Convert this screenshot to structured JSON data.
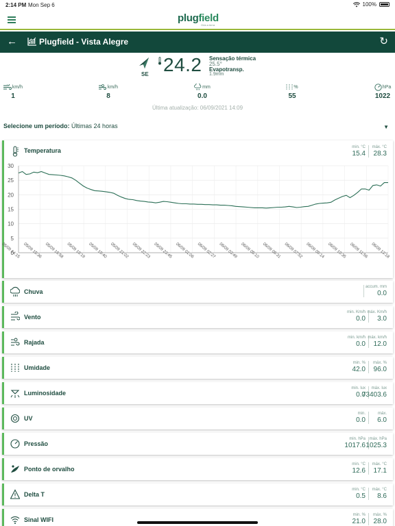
{
  "status": {
    "time": "2:14 PM",
    "date": "Mon Sep 6",
    "battery": "100%"
  },
  "brand": {
    "logo_a": "plug",
    "logo_b": "field",
    "tagline": "Orla a terra"
  },
  "header": {
    "title": "Plugfield - Vista Alegre"
  },
  "current": {
    "wind_dir": "SE",
    "temperature": "24.2",
    "sensation_label": "Sensação térmica",
    "sensation_value": "25.5°",
    "evap_label": "Evapotransp.",
    "evap_value": "1.9mm"
  },
  "metrics": [
    {
      "icon": "wind-icon",
      "unit": "km/h",
      "value": "1"
    },
    {
      "icon": "gust-icon",
      "unit": "km/h",
      "value": "8"
    },
    {
      "icon": "rain-icon",
      "unit": "mm",
      "value": "0.0"
    },
    {
      "icon": "humidity-icon",
      "unit": "%",
      "value": "55"
    },
    {
      "icon": "pressure-icon",
      "unit": "hPa",
      "value": "1022"
    }
  ],
  "last_update": "Última atualização: 06/09/2021 14:09",
  "period": {
    "label": "Selecione um período:",
    "value": "Últimas 24 horas"
  },
  "temperature_card": {
    "label": "Temperatura",
    "min_label": "min. °C",
    "min_value": "15.4",
    "max_label": "máx. °C",
    "max_value": "28.3"
  },
  "chart_data": {
    "type": "line",
    "title": "",
    "xlabel": "",
    "ylabel": "",
    "ylim": [
      0,
      30
    ],
    "yticks": [
      0,
      5,
      10,
      15,
      20,
      25,
      30
    ],
    "grid": true,
    "x_tick_labels": [
      "05/09 14:15",
      "05/09 15:36",
      "05/09 16:58",
      "05/09 18:19",
      "05/09 19:40",
      "05/09 21:02",
      "05/09 22:23",
      "05/09 23:45",
      "06/09 01:06",
      "06/09 02:27",
      "06/09 03:49",
      "06/09 05:10",
      "06/09 06:31",
      "06/09 07:52",
      "06/09 09:14",
      "06/09 10:35",
      "06/09 11:56",
      "06/09 13:18"
    ],
    "series": [
      {
        "color": "#2a6e55",
        "values": [
          27.5,
          28.0,
          27.0,
          27.2,
          27.8,
          27.6,
          28.0,
          27.5,
          27.0,
          26.9,
          26.8,
          26.7,
          26.5,
          26.2,
          25.8,
          25.0,
          24.0,
          23.0,
          22.3,
          21.8,
          21.4,
          21.3,
          21.2,
          21.0,
          20.8,
          20.5,
          19.8,
          19.2,
          18.7,
          18.4,
          18.3,
          18.0,
          17.8,
          17.7,
          17.5,
          17.4,
          17.2,
          17.4,
          17.7,
          17.6,
          17.4,
          17.2,
          17.0,
          16.9,
          16.9,
          16.8,
          16.8,
          16.7,
          16.7,
          16.6,
          16.6,
          16.5,
          16.5,
          16.4,
          16.4,
          16.3,
          16.2,
          16.0,
          15.9,
          15.8,
          15.7,
          15.6,
          15.5,
          15.5,
          15.5,
          15.4,
          15.5,
          15.6,
          15.7,
          15.7,
          15.8,
          16.0,
          15.8,
          15.6,
          15.7,
          15.9,
          16.0,
          16.4,
          16.8,
          17.0,
          17.1,
          17.2,
          17.4,
          18.2,
          18.8,
          19.4,
          19.8,
          19.0,
          19.8,
          20.8,
          22.0,
          22.0,
          21.6,
          23.2,
          23.4,
          23.0,
          24.2,
          24.2
        ]
      }
    ]
  },
  "cards": [
    {
      "name": "rain",
      "icon": "rain-icon",
      "label": "Chuva",
      "stats": [
        {
          "label": "accum. mm",
          "value": "0.0"
        }
      ]
    },
    {
      "name": "wind",
      "icon": "wind-icon",
      "label": "Vento",
      "stats": [
        {
          "label": "min. Km/h",
          "value": "0.0"
        },
        {
          "label": "máx. Km/h",
          "value": "3.0"
        }
      ]
    },
    {
      "name": "gust",
      "icon": "gust-icon",
      "label": "Rajada",
      "stats": [
        {
          "label": "min. km/h",
          "value": "0.0"
        },
        {
          "label": "máx. km/h",
          "value": "12.0"
        }
      ]
    },
    {
      "name": "humidity",
      "icon": "humidity-icon",
      "label": "Umidade",
      "stats": [
        {
          "label": "min. %",
          "value": "42.0"
        },
        {
          "label": "máx. %",
          "value": "96.0"
        }
      ]
    },
    {
      "name": "luminosity",
      "icon": "sun-icon",
      "label": "Luminosidade",
      "stats": [
        {
          "label": "min. lux",
          "value": "0.0"
        },
        {
          "label": "máx. lux",
          "value": "73403.6"
        }
      ]
    },
    {
      "name": "uv",
      "icon": "uv-icon",
      "label": "UV",
      "stats": [
        {
          "label": "min.",
          "value": "0.0"
        },
        {
          "label": "máx.",
          "value": "6.0"
        }
      ]
    },
    {
      "name": "pressure",
      "icon": "pressure-icon",
      "label": "Pressão",
      "stats": [
        {
          "label": "min. hPa",
          "value": "1017.6"
        },
        {
          "label": "máx. hPa",
          "value": "1025.3"
        }
      ]
    },
    {
      "name": "dewpoint",
      "icon": "dewpoint-icon",
      "label": "Ponto de orvalho",
      "stats": [
        {
          "label": "min. °C",
          "value": "12.6"
        },
        {
          "label": "máx. °C",
          "value": "17.1"
        }
      ]
    },
    {
      "name": "delta-t",
      "icon": "warning-icon",
      "label": "Delta T",
      "stats": [
        {
          "label": "min. °C",
          "value": "0.5"
        },
        {
          "label": "máx. °C",
          "value": "8.6"
        }
      ]
    },
    {
      "name": "wifi",
      "icon": "wifi-icon",
      "label": "Sinal WIFI",
      "stats": [
        {
          "label": "min. %",
          "value": "21.0"
        },
        {
          "label": "máx. %",
          "value": "28.0"
        }
      ]
    }
  ]
}
